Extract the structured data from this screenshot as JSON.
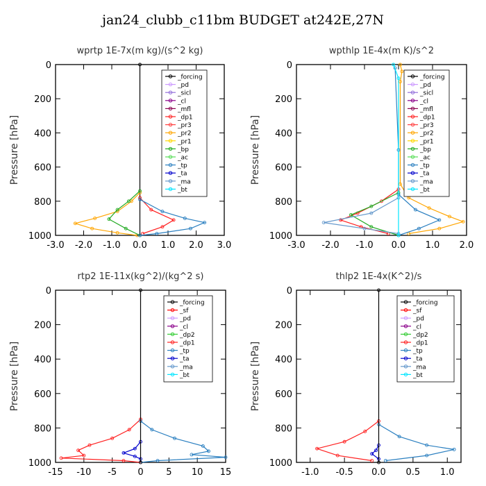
{
  "title": "jan24_clubb_c11bm  BUDGET at242E,27N",
  "colors": {
    "_forcing": "#000000",
    "_pd": "#cc99ff",
    "_sicl": "#9370db",
    "_cl": "#8b008b",
    "_mfl": "#8b0050",
    "_dp1": "#ff2020",
    "_pr3": "#ff4040",
    "_pr2": "#ffa500",
    "_pr1": "#ffd700",
    "_bp": "#22aa22",
    "_ac": "#55dd55",
    "_tp": "#2a7fc0",
    "_ta": "#0000cc",
    "_ma": "#6699cc",
    "_bt": "#00e5ff",
    "_sf": "#ff0000",
    "_dp2": "#33cc33"
  },
  "chart_data": [
    {
      "type": "line",
      "title": "wprtp   1E-7x(m kg)/(s^2 kg)",
      "ylabel": "Pressure [hPa]",
      "xlim": [
        -3,
        3
      ],
      "ylim": [
        1000,
        0
      ],
      "xticks": [
        "-3.0",
        "-2.0",
        "-1.0",
        "0.0",
        "1.0",
        "2.0",
        "3.0"
      ],
      "yticks": [
        "0",
        "200",
        "400",
        "600",
        "800",
        "1000"
      ],
      "legend": [
        "_forcing",
        "_pd",
        "_sicl",
        "_cl",
        "_mfl",
        "_dp1",
        "_pr3",
        "_pr2",
        "_pr1",
        "_bp",
        "_ac",
        "_tp",
        "_ta",
        "_ma",
        "_bt"
      ],
      "series": [
        {
          "name": "_forcing",
          "points": [
            [
              0,
              0
            ],
            [
              0,
              1000
            ]
          ]
        },
        {
          "name": "_pr2",
          "points": [
            [
              0,
              750
            ],
            [
              -0.3,
              800
            ],
            [
              -0.8,
              860
            ],
            [
              -1.6,
              900
            ],
            [
              -2.3,
              930
            ],
            [
              -1.7,
              960
            ],
            [
              -0.8,
              985
            ],
            [
              -0.1,
              1000
            ]
          ]
        },
        {
          "name": "_bp",
          "points": [
            [
              0,
              740
            ],
            [
              -0.4,
              800
            ],
            [
              -0.8,
              850
            ],
            [
              -1.1,
              905
            ],
            [
              -0.5,
              960
            ],
            [
              0,
              1000
            ]
          ]
        },
        {
          "name": "_dp1",
          "points": [
            [
              0,
              780
            ],
            [
              0.4,
              850
            ],
            [
              1.2,
              910
            ],
            [
              0.8,
              950
            ],
            [
              0.1,
              990
            ]
          ]
        },
        {
          "name": "_tp",
          "points": [
            [
              0,
              790
            ],
            [
              0.8,
              860
            ],
            [
              1.6,
              900
            ],
            [
              2.3,
              925
            ],
            [
              1.8,
              960
            ],
            [
              0.6,
              990
            ],
            [
              0,
              1000
            ]
          ]
        }
      ]
    },
    {
      "type": "line",
      "title": "wpthlp   1E-4x(m K)/s^2",
      "ylabel": "Pressure [hPa]",
      "xlim": [
        -3,
        2
      ],
      "ylim": [
        1000,
        0
      ],
      "xticks": [
        "-3.0",
        "-2.0",
        "-1.0",
        "0.0",
        "1.0",
        "2.0"
      ],
      "yticks": [
        "0",
        "200",
        "400",
        "600",
        "800",
        "1000"
      ],
      "legend": [
        "_forcing",
        "_pd",
        "_sicl",
        "_cl",
        "_mfl",
        "_dp1",
        "_pr3",
        "_pr2",
        "_pr1",
        "_bp",
        "_ac",
        "_tp",
        "_ta",
        "_ma",
        "_bt"
      ],
      "series": [
        {
          "name": "_pr2",
          "points": [
            [
              0.05,
              0
            ],
            [
              0.1,
              40
            ],
            [
              0.05,
              100
            ],
            [
              0.05,
              700
            ],
            [
              0.3,
              780
            ],
            [
              0.9,
              840
            ],
            [
              1.5,
              890
            ],
            [
              1.9,
              920
            ],
            [
              1.2,
              960
            ],
            [
              0.3,
              990
            ]
          ]
        },
        {
          "name": "_dp1",
          "points": [
            [
              0,
              730
            ],
            [
              -0.5,
              800
            ],
            [
              -1.2,
              870
            ],
            [
              -1.7,
              910
            ],
            [
              -1.1,
              950
            ],
            [
              -0.3,
              990
            ]
          ]
        },
        {
          "name": "_bp",
          "points": [
            [
              0,
              750
            ],
            [
              -0.8,
              830
            ],
            [
              -1.4,
              880
            ],
            [
              -0.8,
              950
            ],
            [
              0,
              1000
            ]
          ]
        },
        {
          "name": "_tp",
          "points": [
            [
              -0.1,
              20
            ],
            [
              0,
              500
            ],
            [
              0,
              760
            ],
            [
              0.5,
              850
            ],
            [
              1.2,
              910
            ],
            [
              0.6,
              960
            ],
            [
              0,
              1000
            ]
          ]
        },
        {
          "name": "_ma",
          "points": [
            [
              0,
              780
            ],
            [
              -0.8,
              870
            ],
            [
              -2.2,
              925
            ],
            [
              -1.0,
              960
            ],
            [
              0,
              990
            ]
          ]
        },
        {
          "name": "_bt",
          "points": [
            [
              -0.15,
              0
            ],
            [
              0,
              80
            ],
            [
              0,
              1000
            ]
          ]
        }
      ]
    },
    {
      "type": "line",
      "title": "rtp2   1E-11x(kg^2)/(kg^2 s)",
      "ylabel": "Pressure [hPa]",
      "xlim": [
        -15,
        15
      ],
      "ylim": [
        1000,
        0
      ],
      "xticks": [
        "-15",
        "-10",
        "-5",
        "0",
        "5",
        "10",
        "15"
      ],
      "yticks": [
        "0",
        "200",
        "400",
        "600",
        "800",
        "1000"
      ],
      "legend": [
        "_forcing",
        "_sf",
        "_pd",
        "_cl",
        "_dp2",
        "_dp1",
        "_tp",
        "_ta",
        "_ma",
        "_bt"
      ],
      "series": [
        {
          "name": "_dp1",
          "points": [
            [
              0,
              750
            ],
            [
              -2,
              810
            ],
            [
              -5,
              860
            ],
            [
              -9,
              900
            ],
            [
              -11,
              930
            ],
            [
              -10,
              960
            ],
            [
              -14,
              975
            ],
            [
              -3,
              990
            ],
            [
              0,
              1000
            ]
          ]
        },
        {
          "name": "_tp",
          "points": [
            [
              0,
              760
            ],
            [
              2,
              810
            ],
            [
              6,
              860
            ],
            [
              11,
              905
            ],
            [
              12,
              935
            ],
            [
              9,
              955
            ],
            [
              15,
              970
            ],
            [
              3,
              990
            ],
            [
              0,
              1000
            ]
          ]
        },
        {
          "name": "_ta",
          "points": [
            [
              0,
              880
            ],
            [
              -1,
              920
            ],
            [
              -3,
              945
            ],
            [
              -1,
              965
            ],
            [
              0,
              980
            ]
          ]
        },
        {
          "name": "_forcing",
          "points": [
            [
              0,
              0
            ],
            [
              0,
              1000
            ]
          ]
        }
      ]
    },
    {
      "type": "line",
      "title": "thlp2   1E-4x(K^2)/s",
      "ylabel": "Pressure [hPa]",
      "xlim": [
        -1.2,
        1.2
      ],
      "ylim": [
        1000,
        0
      ],
      "xticks": [
        "-1.0",
        "-0.5",
        "0.0",
        "0.5",
        "1.0"
      ],
      "yticks": [
        "0",
        "200",
        "400",
        "600",
        "800",
        "1000"
      ],
      "legend": [
        "_forcing",
        "_sf",
        "_pd",
        "_cl",
        "_dp2",
        "_dp1",
        "_tp",
        "_ta",
        "_ma",
        "_bt"
      ],
      "series": [
        {
          "name": "_dp1",
          "points": [
            [
              0,
              760
            ],
            [
              -0.2,
              820
            ],
            [
              -0.5,
              880
            ],
            [
              -0.9,
              920
            ],
            [
              -0.6,
              960
            ],
            [
              -0.1,
              990
            ]
          ]
        },
        {
          "name": "_tp",
          "points": [
            [
              0,
              780
            ],
            [
              0.3,
              850
            ],
            [
              0.7,
              900
            ],
            [
              1.1,
              925
            ],
            [
              0.7,
              960
            ],
            [
              0.1,
              990
            ]
          ]
        },
        {
          "name": "_ta",
          "points": [
            [
              0,
              900
            ],
            [
              -0.04,
              930
            ],
            [
              -0.1,
              950
            ],
            [
              0,
              980
            ]
          ]
        },
        {
          "name": "_forcing",
          "points": [
            [
              0,
              0
            ],
            [
              0,
              1000
            ]
          ]
        }
      ]
    }
  ]
}
